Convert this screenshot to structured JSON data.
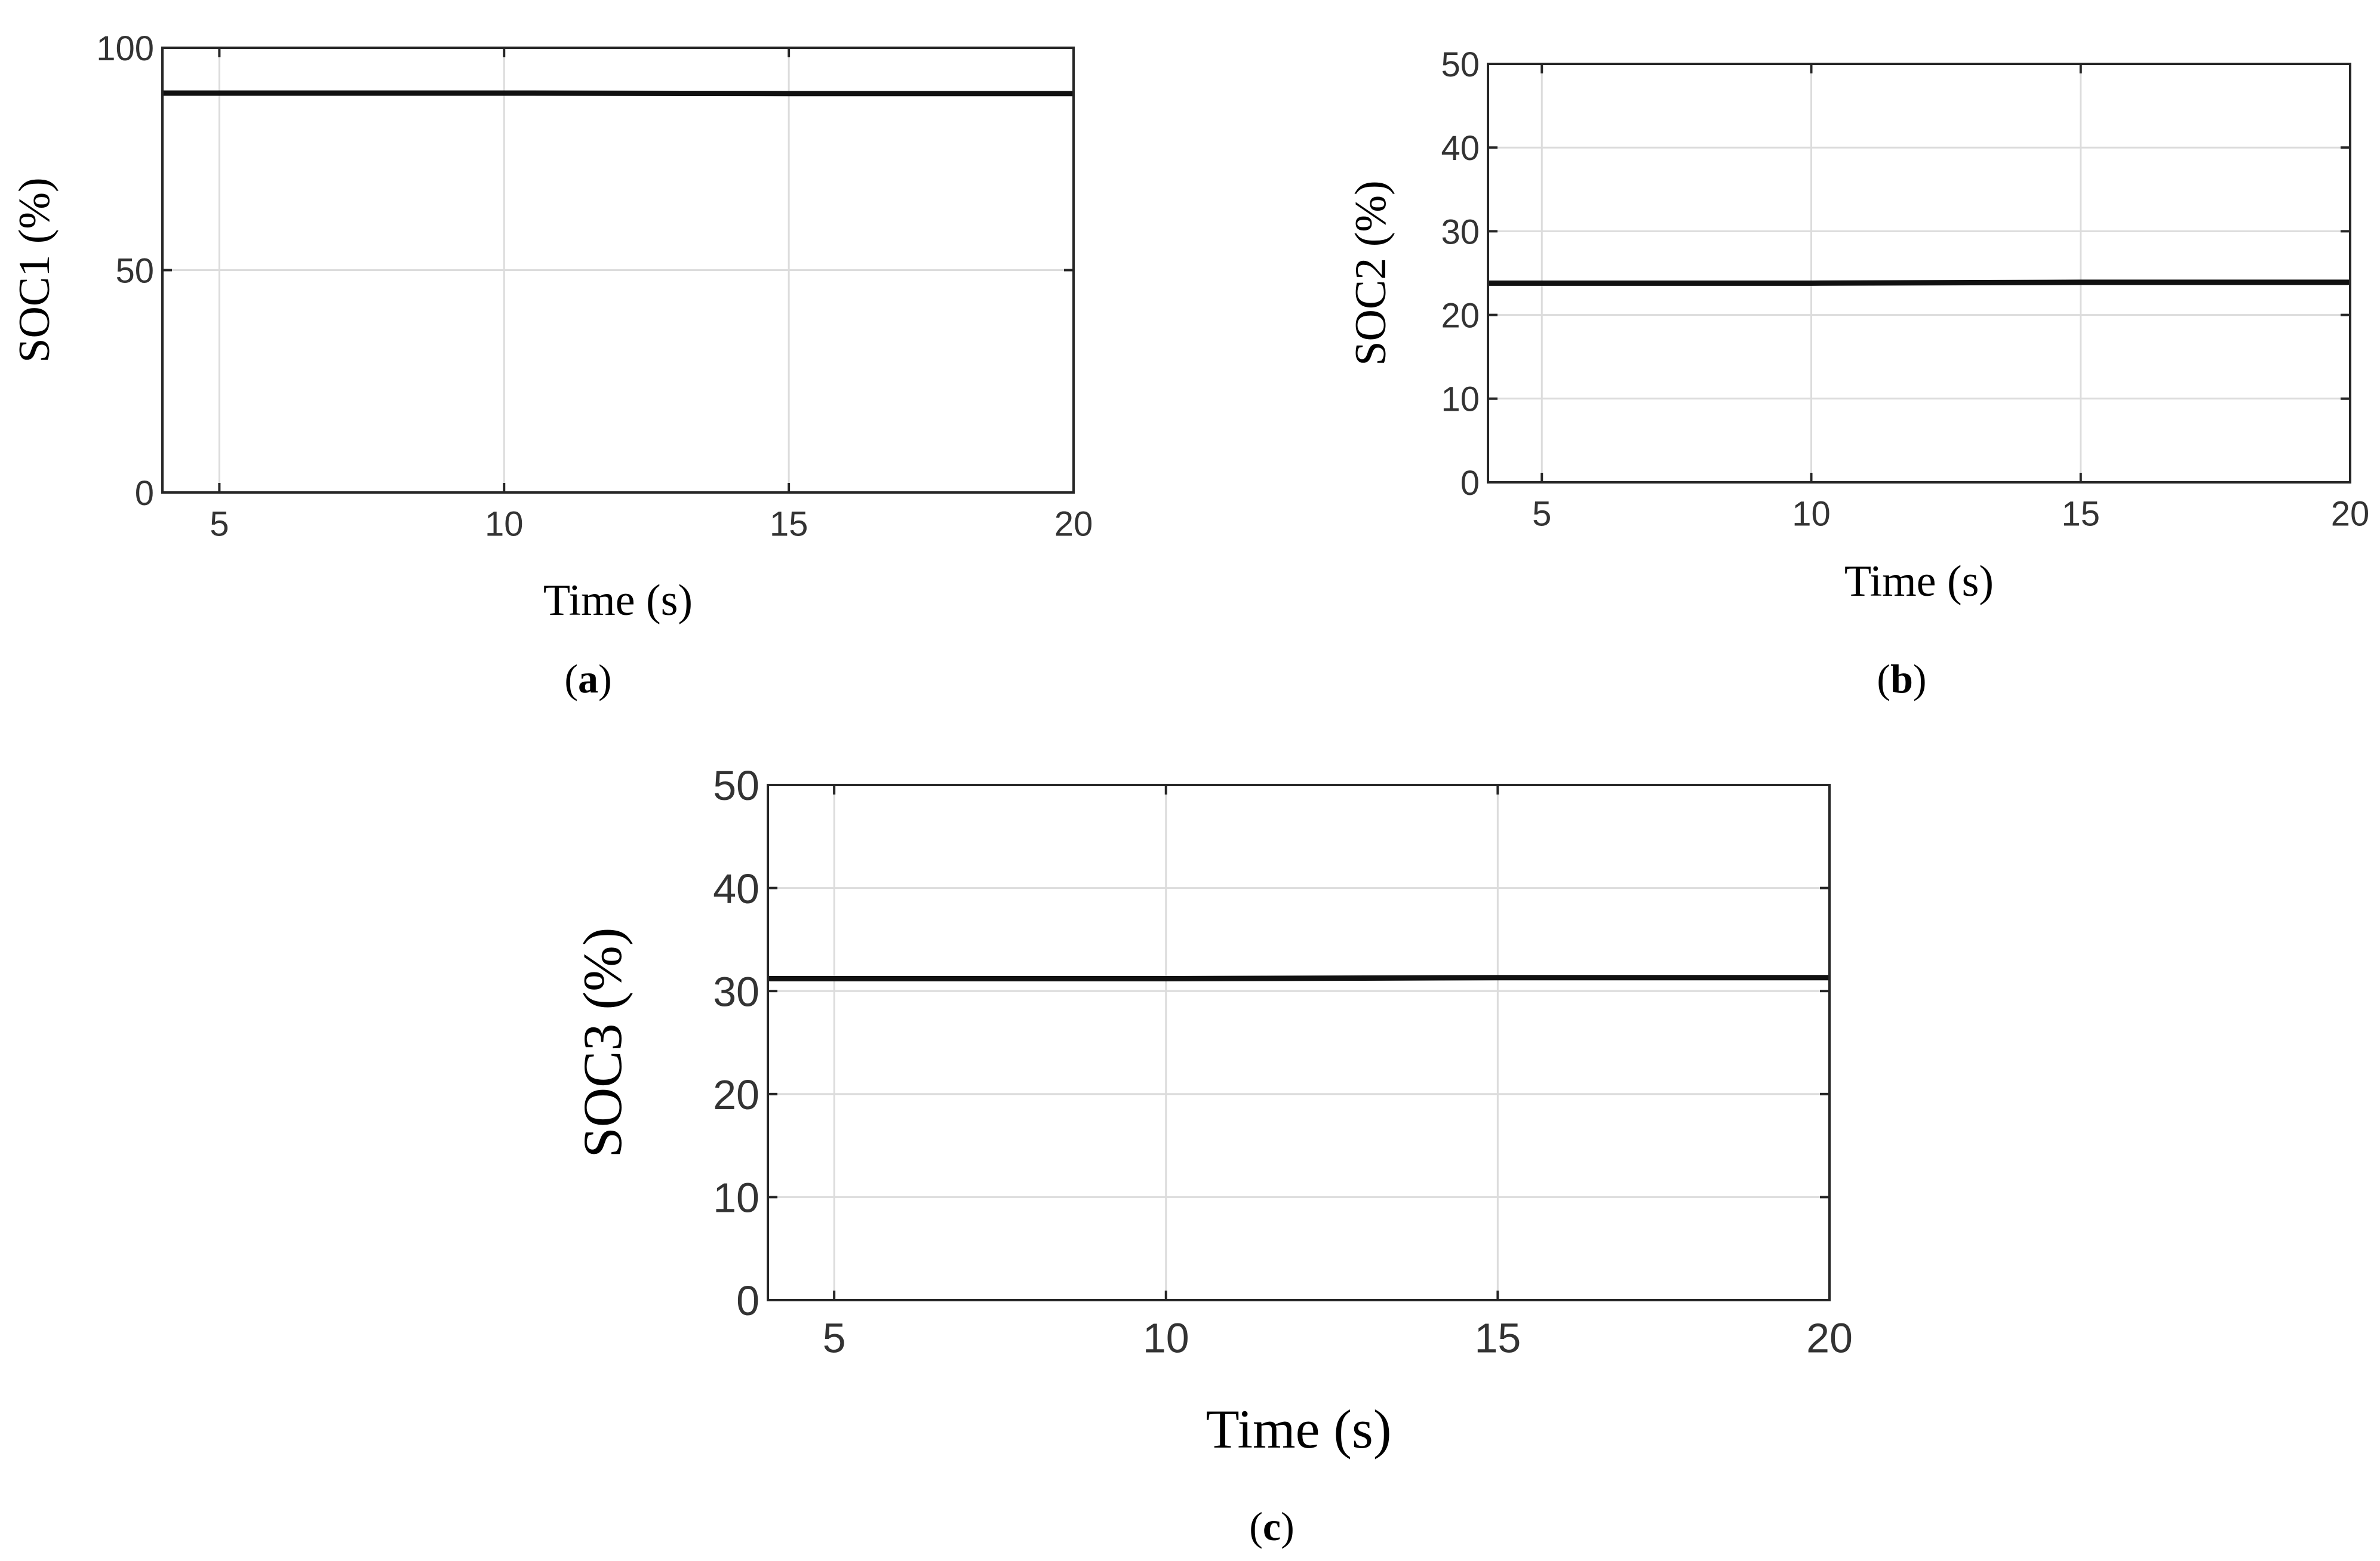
{
  "figure": {
    "panels": [
      "a",
      "b",
      "c"
    ]
  },
  "chart_data": [
    {
      "type": "line",
      "panel_label": "a",
      "xlabel": "Time (s)",
      "ylabel": "SOC1 (%)",
      "xlim": [
        4,
        20
      ],
      "ylim": [
        0,
        100
      ],
      "xticks": [
        5,
        10,
        15,
        20
      ],
      "yticks": [
        0,
        50,
        100
      ],
      "grid": true,
      "line_color": "#111111",
      "series": [
        {
          "x": [
            4,
            10,
            15,
            20
          ],
          "y": [
            89.8,
            89.8,
            89.7,
            89.7
          ]
        }
      ]
    },
    {
      "type": "line",
      "panel_label": "b",
      "xlabel": "Time (s)",
      "ylabel": "SOC2 (%)",
      "xlim": [
        4,
        20
      ],
      "ylim": [
        0,
        50
      ],
      "xticks": [
        5,
        10,
        15,
        20
      ],
      "yticks": [
        0,
        10,
        20,
        30,
        40,
        50
      ],
      "grid": true,
      "line_color": "#111111",
      "series": [
        {
          "x": [
            4,
            10,
            15,
            20
          ],
          "y": [
            23.8,
            23.8,
            23.9,
            23.9
          ]
        }
      ]
    },
    {
      "type": "line",
      "panel_label": "c",
      "xlabel": "Time (s)",
      "ylabel": "SOC3 (%)",
      "xlim": [
        4,
        20
      ],
      "ylim": [
        0,
        50
      ],
      "xticks": [
        5,
        10,
        15,
        20
      ],
      "yticks": [
        0,
        10,
        20,
        30,
        40,
        50
      ],
      "grid": true,
      "line_color": "#111111",
      "series": [
        {
          "x": [
            4,
            10,
            15,
            20
          ],
          "y": [
            31.2,
            31.2,
            31.3,
            31.3
          ]
        }
      ]
    }
  ]
}
